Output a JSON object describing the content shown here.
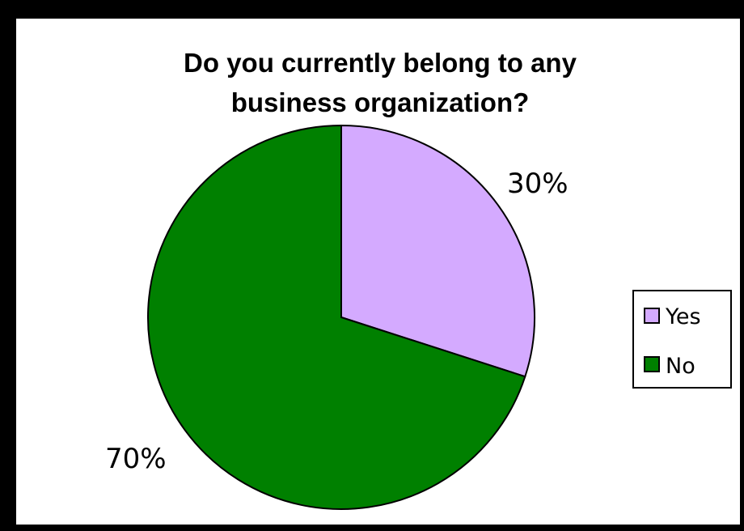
{
  "chart_data": {
    "type": "pie",
    "title_lines": [
      "Do you currently belong to any",
      "business organization?"
    ],
    "categories": [
      "Yes",
      "No"
    ],
    "values": [
      30,
      70
    ],
    "data_labels": [
      "30%",
      "70%"
    ],
    "colors": [
      "#d4aaff",
      "#008000"
    ],
    "legend": {
      "position": "right",
      "entries": [
        "Yes",
        "No"
      ]
    }
  }
}
